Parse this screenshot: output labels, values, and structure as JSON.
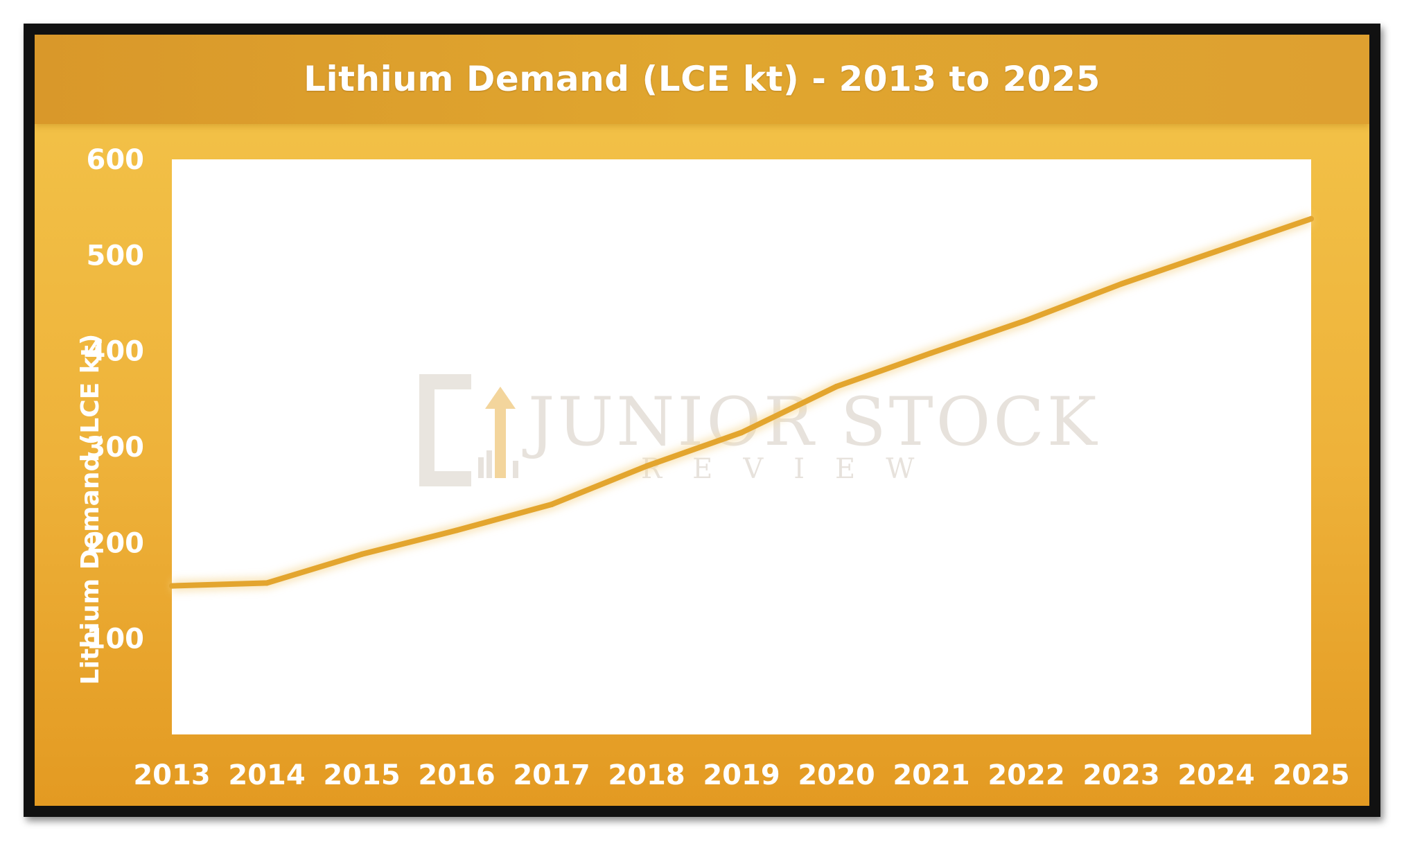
{
  "chart_data": {
    "type": "line",
    "title": "Lithium Demand (LCE kt) - 2013 to 2025",
    "ylabel": "Lithium Demand (LCE kt)",
    "xlabel": "",
    "categories": [
      "2013",
      "2014",
      "2015",
      "2016",
      "2017",
      "2018",
      "2019",
      "2020",
      "2021",
      "2022",
      "2023",
      "2024",
      "2025"
    ],
    "series": [
      {
        "values": [
          155,
          158,
          188,
          213,
          240,
          280,
          315,
          363,
          398,
          432,
          470,
          504,
          538
        ]
      }
    ],
    "ylim": [
      0,
      600
    ],
    "yticks": [
      "100",
      "200",
      "300",
      "400",
      "500",
      "600"
    ],
    "grid": false,
    "legend": "none",
    "colors": {
      "line": "#e3a52e",
      "plot_background": "#ffffff",
      "panel": "#f0b73d",
      "frame": "#111111"
    }
  },
  "watermark": {
    "name": "JUNIOR STOCK",
    "sub": "REVIEW"
  }
}
